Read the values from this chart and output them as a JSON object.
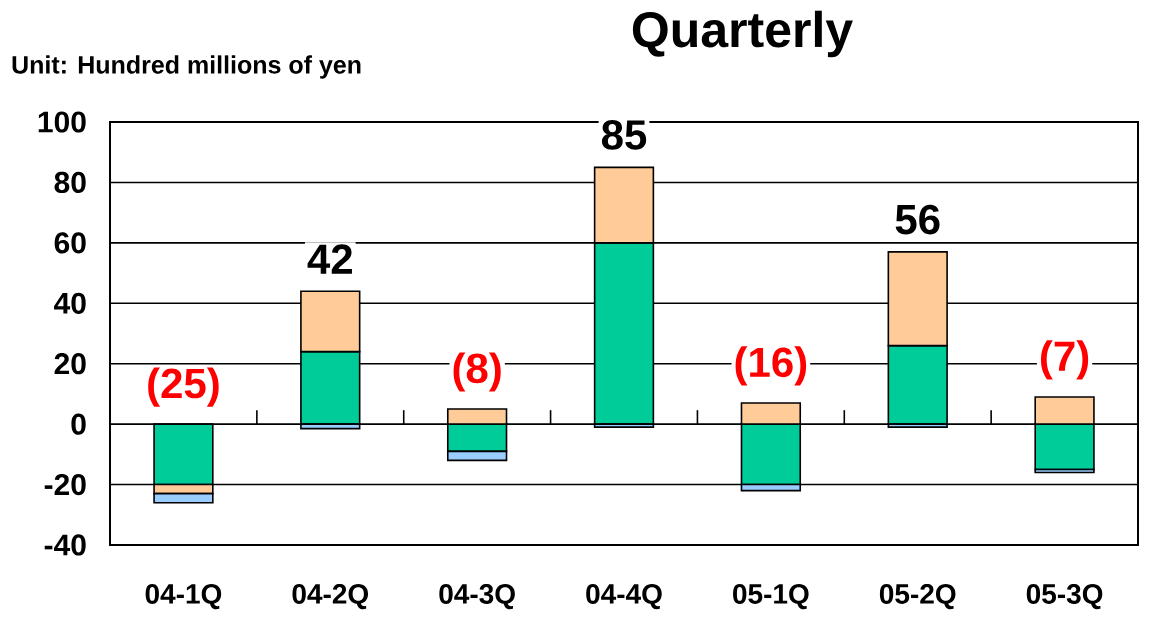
{
  "chart_data": {
    "type": "bar",
    "title": "Quarterly",
    "ylabel": "Unit: Hundred millions of yen",
    "categories": [
      "04-1Q",
      "04-2Q",
      "04-3Q",
      "04-4Q",
      "05-1Q",
      "05-2Q",
      "05-3Q"
    ],
    "stacked": true,
    "series": [
      {
        "color": "#00cc99",
        "values": [
          -20,
          24,
          -9,
          60,
          -20,
          26,
          -15
        ]
      },
      {
        "color": "#ffcc99",
        "values": [
          -3,
          20,
          5,
          25,
          7,
          31,
          9
        ]
      },
      {
        "color": "#99ccff",
        "values": [
          -3,
          -1.5,
          -3,
          -1,
          -2,
          -1,
          -1
        ]
      }
    ],
    "totals": [
      "(25)",
      "42",
      "(8)",
      "85",
      "(16)",
      "56",
      "(7)"
    ],
    "ylim": [
      -40,
      100
    ],
    "yticks": [
      -40,
      -20,
      0,
      20,
      40,
      60,
      80,
      100
    ],
    "grid": "y"
  }
}
